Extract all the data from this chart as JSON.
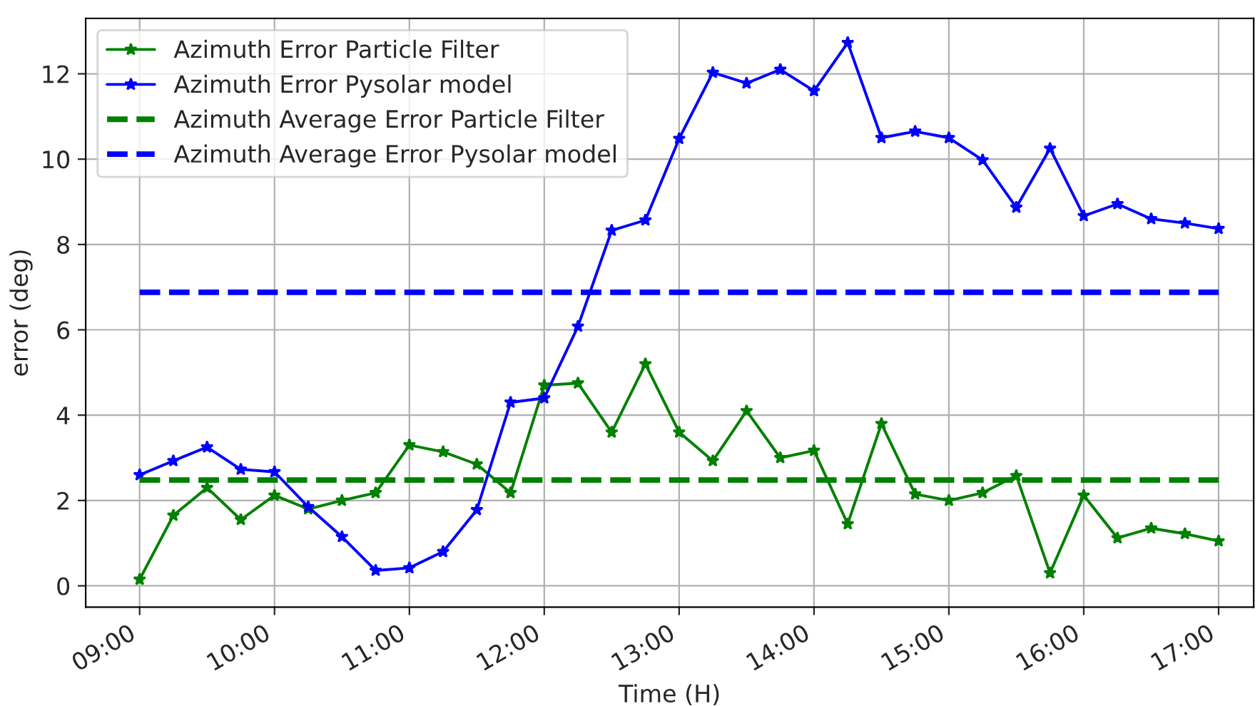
{
  "chart_data": {
    "type": "line",
    "xlabel": "Time (H)",
    "ylabel": "error (deg)",
    "x": [
      9,
      9.25,
      9.5,
      9.75,
      10,
      10.25,
      10.5,
      10.75,
      11,
      11.25,
      11.5,
      11.75,
      12,
      12.25,
      12.5,
      12.75,
      13,
      13.25,
      13.5,
      13.75,
      14,
      14.25,
      14.5,
      14.75,
      15,
      15.25,
      15.5,
      15.75,
      16,
      16.25,
      16.5,
      16.75,
      17
    ],
    "series": [
      {
        "name": "Azimuth Error Particle Filter",
        "color": "#008000",
        "marker": "star",
        "line_style": "solid",
        "values": [
          0.15,
          1.65,
          2.3,
          1.55,
          2.12,
          1.8,
          2.0,
          2.18,
          3.3,
          3.14,
          2.85,
          2.18,
          4.7,
          4.75,
          3.6,
          5.2,
          3.6,
          2.93,
          4.1,
          3.0,
          3.17,
          1.45,
          3.8,
          2.15,
          2.0,
          2.18,
          2.58,
          0.3,
          2.12,
          1.12,
          1.35,
          1.22,
          1.05
        ]
      },
      {
        "name": "Azimuth Error Pysolar model",
        "color": "#0000ff",
        "marker": "star",
        "line_style": "solid",
        "values": [
          2.6,
          2.93,
          3.25,
          2.73,
          2.67,
          1.85,
          1.15,
          0.36,
          0.42,
          0.8,
          1.78,
          4.3,
          4.4,
          6.08,
          8.33,
          8.57,
          10.48,
          12.03,
          11.78,
          12.1,
          11.6,
          12.73,
          10.5,
          10.65,
          10.5,
          9.98,
          8.87,
          10.25,
          8.67,
          8.95,
          8.6,
          8.5,
          8.37
        ]
      },
      {
        "name": "Azimuth Average Error Particle Filter",
        "color": "#008000",
        "marker": "none",
        "line_style": "dashed",
        "values": [
          2.48,
          2.48,
          2.48,
          2.48,
          2.48,
          2.48,
          2.48,
          2.48,
          2.48,
          2.48,
          2.48,
          2.48,
          2.48,
          2.48,
          2.48,
          2.48,
          2.48,
          2.48,
          2.48,
          2.48,
          2.48,
          2.48,
          2.48,
          2.48,
          2.48,
          2.48,
          2.48,
          2.48,
          2.48,
          2.48,
          2.48,
          2.48,
          2.48
        ]
      },
      {
        "name": "Azimuth Average Error Pysolar model",
        "color": "#0000ff",
        "marker": "none",
        "line_style": "dashed",
        "values": [
          6.88,
          6.88,
          6.88,
          6.88,
          6.88,
          6.88,
          6.88,
          6.88,
          6.88,
          6.88,
          6.88,
          6.88,
          6.88,
          6.88,
          6.88,
          6.88,
          6.88,
          6.88,
          6.88,
          6.88,
          6.88,
          6.88,
          6.88,
          6.88,
          6.88,
          6.88,
          6.88,
          6.88,
          6.88,
          6.88,
          6.88,
          6.88,
          6.88
        ]
      }
    ],
    "xlim": [
      8.6,
      17.26
    ],
    "ylim": [
      -0.5,
      13.3
    ],
    "xticks": [
      {
        "value": 9,
        "label": "09:00"
      },
      {
        "value": 10,
        "label": "10:00"
      },
      {
        "value": 11,
        "label": "11:00"
      },
      {
        "value": 12,
        "label": "12:00"
      },
      {
        "value": 13,
        "label": "13:00"
      },
      {
        "value": 14,
        "label": "14:00"
      },
      {
        "value": 15,
        "label": "15:00"
      },
      {
        "value": 16,
        "label": "16:00"
      },
      {
        "value": 17,
        "label": "17:00"
      }
    ],
    "yticks": [
      0,
      2,
      4,
      6,
      8,
      10,
      12
    ],
    "grid": true,
    "legend": "top left"
  }
}
